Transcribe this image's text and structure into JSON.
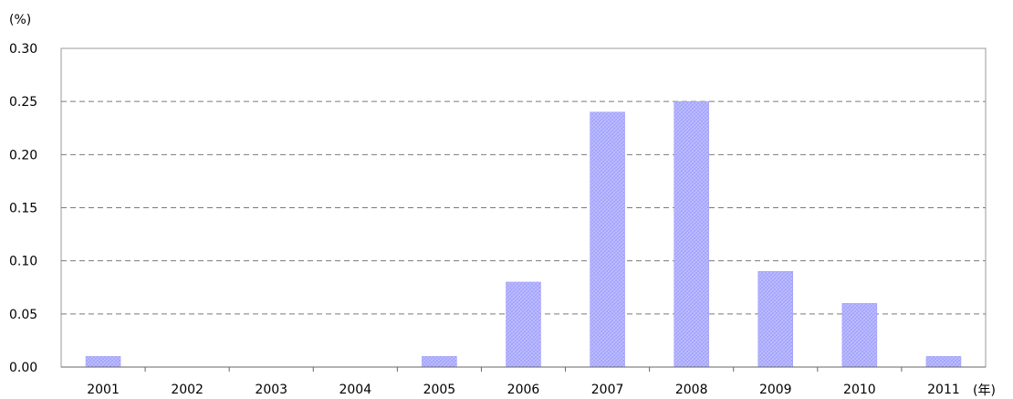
{
  "chart_data": {
    "type": "bar",
    "title": "",
    "y_unit_label": "(%)",
    "x_unit_label": "(年)",
    "categories": [
      "2001",
      "2002",
      "2003",
      "2004",
      "2005",
      "2006",
      "2007",
      "2008",
      "2009",
      "2010",
      "2011"
    ],
    "values": [
      0.01,
      0,
      0,
      0,
      0.01,
      0.08,
      0.24,
      0.25,
      0.09,
      0.06,
      0.01
    ],
    "ylim": [
      0,
      0.3
    ],
    "yticks": [
      "0.00",
      "0.05",
      "0.10",
      "0.15",
      "0.20",
      "0.25",
      "0.30"
    ],
    "grid": true,
    "bar_color": "#aaaaff",
    "legend": "none"
  }
}
